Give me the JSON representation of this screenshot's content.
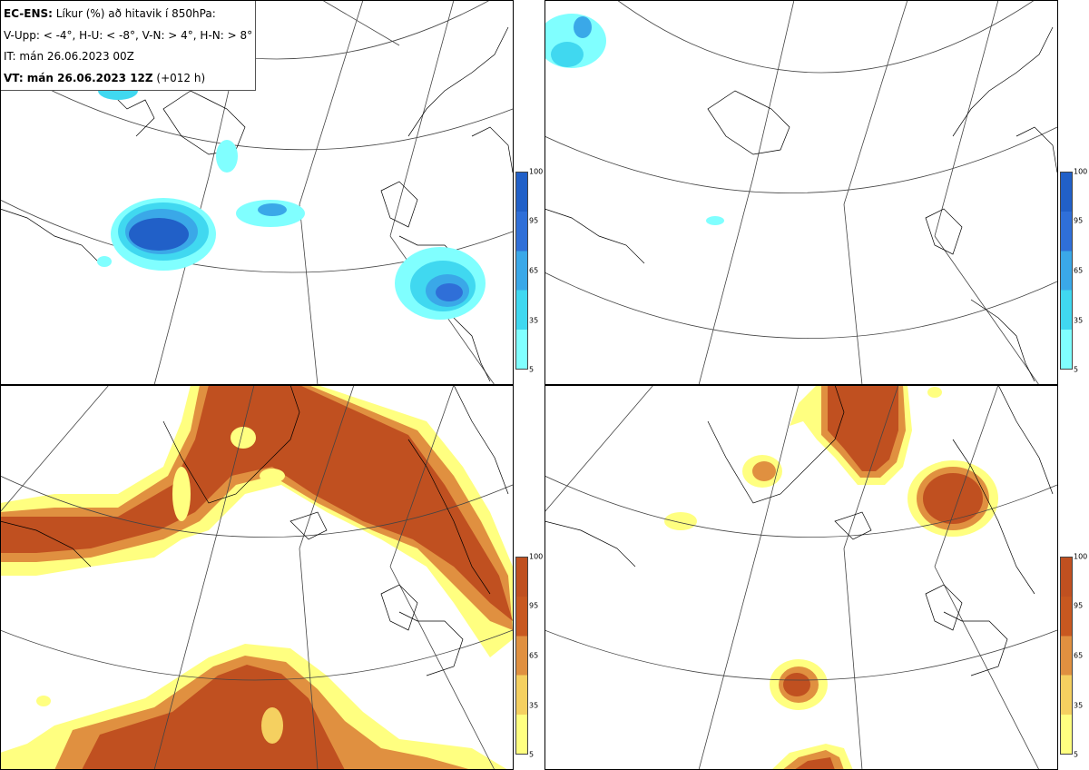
{
  "title": {
    "line1_prefix": "EC-ENS:",
    "line1_text": " Líkur (%) að hitavik í 850hPa:",
    "line2": "V-Upp: < -4°, H-U: < -8°, V-N: > 4°, H-N: > 8°",
    "line3": "IT: mán 26.06.2023 00Z",
    "line4_prefix": "VT: mán 26.06.2023 12Z",
    "line4_suffix": " (+012 h)"
  },
  "colorbar_ticks": [
    "100",
    "95",
    "65",
    "35",
    "5"
  ],
  "colors": {
    "cold": [
      "#80ffff",
      "#40d8f0",
      "#3aa8e8",
      "#2f6fd8",
      "#2160c8"
    ],
    "warm": [
      "#ffff80",
      "#f5d060",
      "#e09040",
      "#c85820",
      "#c05020"
    ]
  },
  "panels": [
    {
      "id": "top-left",
      "quantity": "V-Upp"
    },
    {
      "id": "top-right",
      "quantity": "H-U"
    },
    {
      "id": "bottom-left",
      "quantity": "V-N"
    },
    {
      "id": "bottom-right",
      "quantity": "H-N"
    }
  ]
}
